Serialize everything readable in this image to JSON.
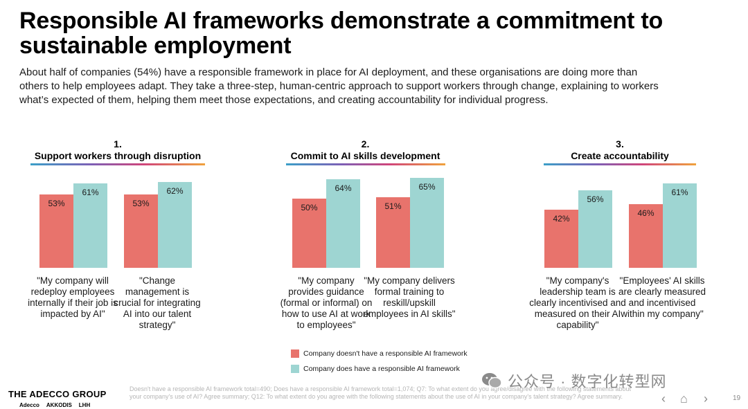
{
  "title": "Responsible AI frameworks demonstrate a commitment to sustainable employment",
  "intro": "About half of companies (54%) have a responsible framework in place for AI deployment, and these organisations are doing more than others to help employees adapt. They take a three-step, human-centric approach to support workers through change, explaining to workers what’s expected of them, helping them meet those expectations, and creating accountability for individual progress.",
  "sections": [
    {
      "number": "1.",
      "title": "Support workers through disruption"
    },
    {
      "number": "2.",
      "title": "Commit to AI skills development"
    },
    {
      "number": "3.",
      "title": "Create accountability"
    }
  ],
  "colors": {
    "no_framework": "#E8736C",
    "framework": "#9ED5D2",
    "text": "#1a1a1a"
  },
  "chart_data": {
    "type": "bar",
    "ylim": [
      0,
      100
    ],
    "categories": [
      "\"My company will redeploy employees internally if their job is impacted by AI\"",
      "\"Change management is crucial for integrating AI into our talent strategy\"",
      "\"My company provides guidance (formal or informal) on how to use AI at work to employees\"",
      "\"My company delivers formal training to reskill/upskill employees in AI skills\"",
      "\"My company's leadership team is clearly incentivised and measured on their AI capability\"",
      "\"Employees' AI skills are clearly measured and incentivised within my company\""
    ],
    "series": [
      {
        "name": "Company doesn't have a responsible AI framework",
        "values": [
          53,
          53,
          50,
          51,
          42,
          46
        ]
      },
      {
        "name": "Company does have a responsible AI framework",
        "values": [
          61,
          62,
          64,
          65,
          56,
          61
        ]
      }
    ],
    "value_labels": [
      [
        "53%",
        "53%",
        "50%",
        "51%",
        "42%",
        "46%"
      ],
      [
        "61%",
        "62%",
        "64%",
        "65%",
        "56%",
        "61%"
      ]
    ]
  },
  "legend": [
    "Company doesn't have a responsible AI framework",
    "Company does have a responsible AI framework"
  ],
  "footer": {
    "brand": "THE ADECCO GROUP",
    "sub_brands": [
      "Adecco",
      "AKKODIS",
      "LHH"
    ],
    "footnote": "Doesn't have a responsible AI framework total=490; Does have a responsible AI framework total=1,074; Q7: To what extent do you agree/disagree with the following statements about your company's use of AI? Agree summary; Q12: To what extent do you agree with the following statements about the use of AI in your company's talent strategy? Agree summary.",
    "watermark": "公众号 · 数字化转型网",
    "nav_prev": "‹",
    "nav_home": "⌂",
    "nav_next": "›",
    "page_number": "19"
  }
}
